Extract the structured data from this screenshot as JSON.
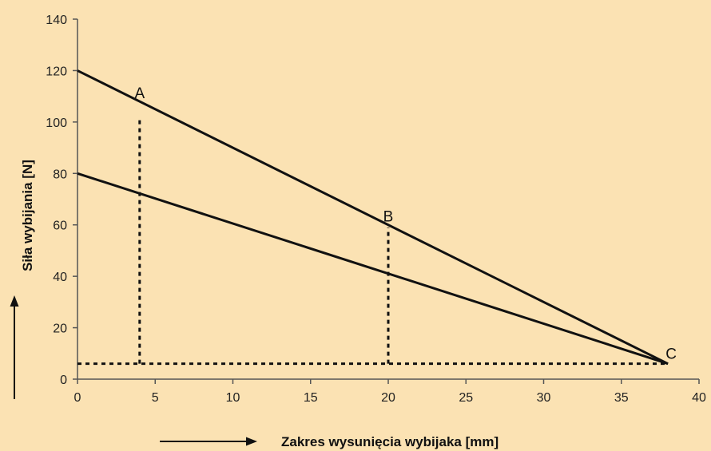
{
  "chart_data": {
    "type": "line",
    "title": "",
    "xlabel": "Zakres wysunięcia wybijaka [mm]",
    "ylabel": "Siła wybijania [N]",
    "xlim": [
      0,
      40
    ],
    "ylim": [
      0,
      140
    ],
    "x_ticks": [
      0,
      5,
      10,
      15,
      20,
      25,
      30,
      35,
      40
    ],
    "y_ticks": [
      0,
      20,
      40,
      60,
      80,
      100,
      120,
      140
    ],
    "grid": false,
    "legend": "none",
    "colors": {
      "background": "#fbe2b3",
      "line": "#111111",
      "axis": "#555555"
    },
    "series": [
      {
        "x": [
          0,
          38
        ],
        "y": [
          120,
          6
        ],
        "style": "solid"
      },
      {
        "x": [
          0,
          38
        ],
        "y": [
          80,
          6
        ],
        "style": "solid"
      }
    ],
    "reference_lines": [
      {
        "x": [
          4,
          4
        ],
        "y": [
          6,
          101
        ],
        "style": "dotted"
      },
      {
        "x": [
          20,
          20
        ],
        "y": [
          6,
          59
        ],
        "style": "dotted"
      },
      {
        "x": [
          0,
          38
        ],
        "y": [
          6,
          6
        ],
        "style": "dotted"
      }
    ],
    "annotations": [
      {
        "text": "A",
        "x": 4,
        "y": 108
      },
      {
        "text": "B",
        "x": 20,
        "y": 60
      },
      {
        "text": "C",
        "x": 38,
        "y": 6
      }
    ]
  }
}
